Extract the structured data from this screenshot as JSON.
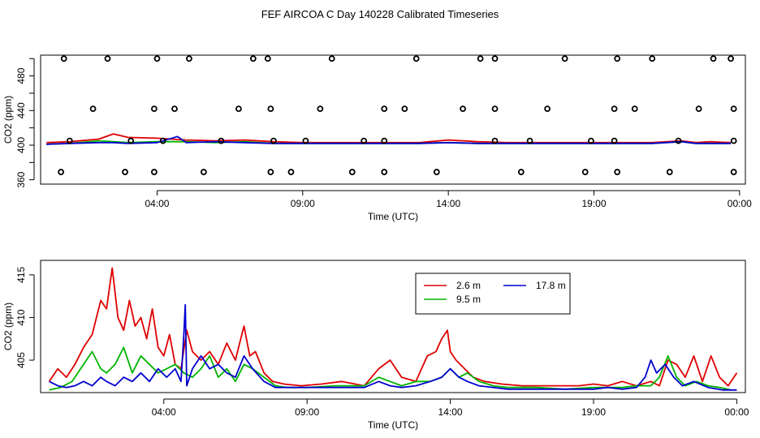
{
  "title": "FEF AIRCOA C  Day 140228  Calibrated Timeseries",
  "chart_data": [
    {
      "type": "line",
      "panel": "top",
      "xlabel": "Time (UTC)",
      "ylabel": "CO2 (ppm)",
      "x_unit": "hours UTC",
      "xlim": [
        0.0,
        24.2
      ],
      "ylim": [
        355,
        504
      ],
      "x_ticks": [
        4,
        9,
        14,
        19,
        24
      ],
      "x_tick_labels": [
        "04:00",
        "09:00",
        "14:00",
        "19:00",
        "00:00"
      ],
      "y_ticks": [
        360,
        400,
        440,
        480
      ],
      "y_tick_labels": [
        "360",
        "400",
        "440",
        "480"
      ],
      "y_minor_ticks": [
        380,
        420,
        460,
        500
      ],
      "series": [
        {
          "name": "2.6 m",
          "color": "#e00000",
          "x": [
            0.2,
            1,
            2,
            2.5,
            3,
            4,
            5,
            6,
            7,
            8,
            9,
            10,
            11,
            12,
            13,
            14,
            15,
            16,
            17,
            18,
            19,
            20,
            21,
            22,
            22.5,
            23,
            23.7
          ],
          "y": [
            403,
            404,
            407,
            413,
            409,
            408,
            406,
            405,
            406,
            404,
            403,
            403,
            403,
            403,
            403,
            406,
            404,
            403,
            403,
            403,
            403,
            403,
            403,
            405,
            403,
            404,
            403
          ]
        },
        {
          "name": "9.5 m",
          "color": "#00b400",
          "x": [
            0.2,
            1,
            2,
            2.5,
            3,
            4,
            5,
            6,
            7,
            8,
            9,
            10,
            11,
            12,
            13,
            14,
            15,
            16,
            17,
            18,
            19,
            20,
            21,
            22,
            22.5,
            23,
            23.7
          ],
          "y": [
            401,
            402,
            405,
            404,
            403,
            404,
            404,
            403,
            404,
            402,
            402,
            402,
            402,
            402,
            402,
            403,
            402,
            402,
            402,
            402,
            402,
            402,
            402,
            404,
            402,
            402,
            402
          ]
        },
        {
          "name": "17.8 m",
          "color": "#0000d0",
          "x": [
            0.2,
            1,
            2,
            2.5,
            3,
            4,
            4.7,
            5,
            6,
            7,
            8,
            9,
            10,
            11,
            12,
            13,
            14,
            15,
            16,
            17,
            18,
            19,
            20,
            21,
            22,
            22.5,
            23,
            23.7
          ],
          "y": [
            401,
            402,
            403,
            403,
            402,
            403,
            410,
            403,
            404,
            403,
            402,
            402,
            402,
            402,
            402,
            402,
            403,
            402,
            402,
            402,
            402,
            402,
            402,
            402,
            404,
            402,
            402,
            402
          ]
        }
      ],
      "calibration_points": {
        "color": "#000000",
        "x": [
          0.8,
          2.3,
          4.0,
          5.1,
          7.3,
          7.8,
          10.0,
          12.9,
          15.1,
          15.6,
          18.0,
          19.8,
          21.0,
          23.1,
          23.7,
          1.8,
          3.9,
          4.6,
          6.8,
          7.9,
          9.6,
          11.8,
          12.5,
          14.5,
          15.6,
          17.4,
          19.7,
          20.4,
          22.6,
          23.8,
          1.0,
          3.1,
          4.2,
          6.2,
          8.0,
          9.1,
          11.1,
          11.8,
          15.6,
          16.8,
          18.9,
          19.7,
          21.9,
          23.8,
          0.7,
          2.9,
          3.9,
          5.6,
          7.9,
          8.6,
          10.7,
          11.8,
          13.6,
          16.5,
          18.7,
          19.8,
          21.6,
          23.8
        ],
        "y": [
          500,
          500,
          500,
          500,
          500,
          500,
          500,
          500,
          500,
          500,
          500,
          500,
          500,
          500,
          500,
          442,
          442,
          442,
          442,
          442,
          442,
          442,
          442,
          442,
          442,
          442,
          442,
          442,
          442,
          442,
          405,
          405,
          405,
          405,
          405,
          405,
          405,
          405,
          405,
          405,
          405,
          405,
          405,
          405,
          369,
          369,
          369,
          369,
          369,
          369,
          369,
          369,
          369,
          369,
          369,
          369,
          369,
          369
        ]
      }
    },
    {
      "type": "line",
      "panel": "bottom",
      "xlabel": "Time (UTC)",
      "ylabel": "CO2 (ppm)",
      "x_unit": "hours UTC",
      "xlim": [
        -0.3,
        24.3
      ],
      "ylim": [
        401.2,
        416.7
      ],
      "x_ticks": [
        4,
        9,
        14,
        19,
        24
      ],
      "x_tick_labels": [
        "04:00",
        "09:00",
        "14:00",
        "19:00",
        "00:00"
      ],
      "y_ticks": [
        405,
        410,
        415
      ],
      "y_tick_labels": [
        "405",
        "410",
        "415"
      ],
      "legend": {
        "placement": "top-center",
        "entries": [
          "2.6 m",
          "17.8 m",
          "9.5 m"
        ]
      },
      "series": [
        {
          "name": "2.6 m",
          "color": "#e00000",
          "x": [
            0.0,
            0.3,
            0.6,
            0.9,
            1.2,
            1.5,
            1.8,
            2.0,
            2.2,
            2.4,
            2.6,
            2.8,
            3.0,
            3.2,
            3.4,
            3.6,
            3.8,
            4.0,
            4.2,
            4.4,
            4.6,
            4.8,
            5.0,
            5.3,
            5.6,
            5.9,
            6.2,
            6.5,
            6.8,
            7.0,
            7.2,
            7.5,
            7.8,
            8.2,
            8.8,
            9.5,
            10.2,
            11.0,
            11.5,
            11.9,
            12.3,
            12.8,
            13.2,
            13.5,
            13.7,
            13.9,
            14.0,
            14.2,
            14.5,
            14.8,
            15.2,
            15.8,
            16.5,
            17.5,
            18.5,
            19.0,
            19.5,
            20.0,
            20.5,
            21.0,
            21.3,
            21.6,
            21.9,
            22.2,
            22.5,
            22.8,
            23.1,
            23.4,
            23.7,
            24.0
          ],
          "y": [
            402.5,
            404.0,
            403.0,
            404.5,
            406.5,
            408.0,
            412.0,
            411.0,
            415.8,
            410.0,
            408.5,
            412.0,
            409.0,
            410.0,
            407.5,
            411.0,
            406.5,
            405.5,
            408.0,
            404.5,
            404.0,
            408.5,
            406.0,
            405.0,
            406.0,
            404.5,
            407.0,
            405.0,
            409.0,
            405.5,
            406.0,
            403.5,
            402.5,
            402.2,
            402.0,
            402.2,
            402.5,
            402.0,
            404.0,
            405.0,
            403.0,
            402.5,
            405.5,
            406.0,
            407.5,
            408.5,
            406.0,
            405.0,
            404.0,
            403.0,
            402.5,
            402.2,
            402.0,
            402.0,
            402.0,
            402.2,
            402.0,
            402.5,
            402.0,
            402.5,
            402.0,
            405.0,
            404.5,
            403.0,
            405.5,
            402.5,
            405.5,
            403.0,
            402.0,
            403.5
          ]
        },
        {
          "name": "9.5 m",
          "color": "#00b400",
          "x": [
            0.0,
            0.4,
            0.8,
            1.2,
            1.5,
            1.8,
            2.0,
            2.3,
            2.6,
            2.9,
            3.2,
            3.5,
            3.8,
            4.1,
            4.4,
            4.7,
            5.0,
            5.3,
            5.6,
            5.9,
            6.2,
            6.5,
            6.8,
            7.1,
            7.5,
            7.9,
            8.3,
            9.0,
            10.0,
            11.0,
            11.5,
            11.9,
            12.3,
            12.8,
            13.3,
            13.7,
            14.0,
            14.3,
            14.6,
            15.0,
            15.5,
            16.0,
            17.0,
            18.0,
            19.0,
            19.5,
            20.0,
            20.5,
            21.0,
            21.3,
            21.6,
            21.9,
            22.2,
            22.6,
            23.0,
            23.4,
            23.8
          ],
          "y": [
            401.5,
            401.8,
            402.5,
            404.5,
            406.0,
            404.0,
            403.5,
            404.5,
            406.5,
            403.5,
            405.5,
            404.5,
            403.5,
            404.0,
            404.5,
            403.5,
            403.0,
            404.0,
            405.5,
            403.0,
            404.0,
            402.5,
            404.5,
            404.0,
            403.0,
            402.0,
            401.8,
            401.8,
            402.0,
            402.0,
            403.0,
            402.5,
            402.0,
            402.5,
            402.5,
            403.0,
            404.0,
            403.0,
            403.5,
            402.5,
            402.0,
            401.8,
            401.8,
            401.6,
            401.8,
            401.8,
            401.8,
            402.0,
            402.0,
            403.0,
            405.5,
            403.0,
            402.0,
            402.5,
            402.0,
            401.8,
            401.5
          ]
        },
        {
          "name": "17.8 m",
          "color": "#0000d0",
          "x": [
            0.0,
            0.3,
            0.6,
            0.9,
            1.2,
            1.5,
            1.8,
            2.0,
            2.3,
            2.6,
            2.9,
            3.2,
            3.5,
            3.8,
            4.1,
            4.4,
            4.6,
            4.7,
            4.75,
            4.8,
            5.0,
            5.3,
            5.6,
            5.9,
            6.2,
            6.5,
            6.8,
            7.1,
            7.5,
            7.9,
            8.3,
            9.0,
            10.0,
            11.0,
            11.5,
            11.9,
            12.3,
            12.8,
            13.3,
            13.7,
            14.0,
            14.3,
            14.6,
            15.0,
            15.5,
            16.0,
            17.0,
            18.0,
            19.0,
            19.5,
            20.0,
            20.5,
            20.8,
            21.0,
            21.2,
            21.5,
            21.8,
            22.1,
            22.5,
            23.0,
            23.5,
            24.0
          ],
          "y": [
            402.5,
            402.0,
            401.8,
            402.0,
            402.5,
            402.0,
            403.0,
            402.5,
            402.0,
            403.0,
            402.5,
            403.5,
            402.5,
            404.0,
            403.0,
            404.0,
            402.5,
            408.0,
            411.5,
            402.0,
            404.0,
            405.5,
            404.0,
            404.5,
            403.5,
            403.0,
            405.5,
            404.0,
            402.5,
            401.8,
            401.8,
            401.8,
            401.8,
            401.8,
            402.5,
            402.0,
            401.8,
            402.0,
            402.5,
            403.0,
            404.0,
            403.0,
            402.5,
            402.0,
            401.8,
            401.6,
            401.6,
            401.6,
            401.6,
            401.8,
            401.6,
            401.8,
            403.0,
            405.0,
            403.5,
            404.5,
            403.0,
            402.0,
            402.5,
            401.8,
            401.5,
            401.5
          ]
        }
      ]
    }
  ]
}
